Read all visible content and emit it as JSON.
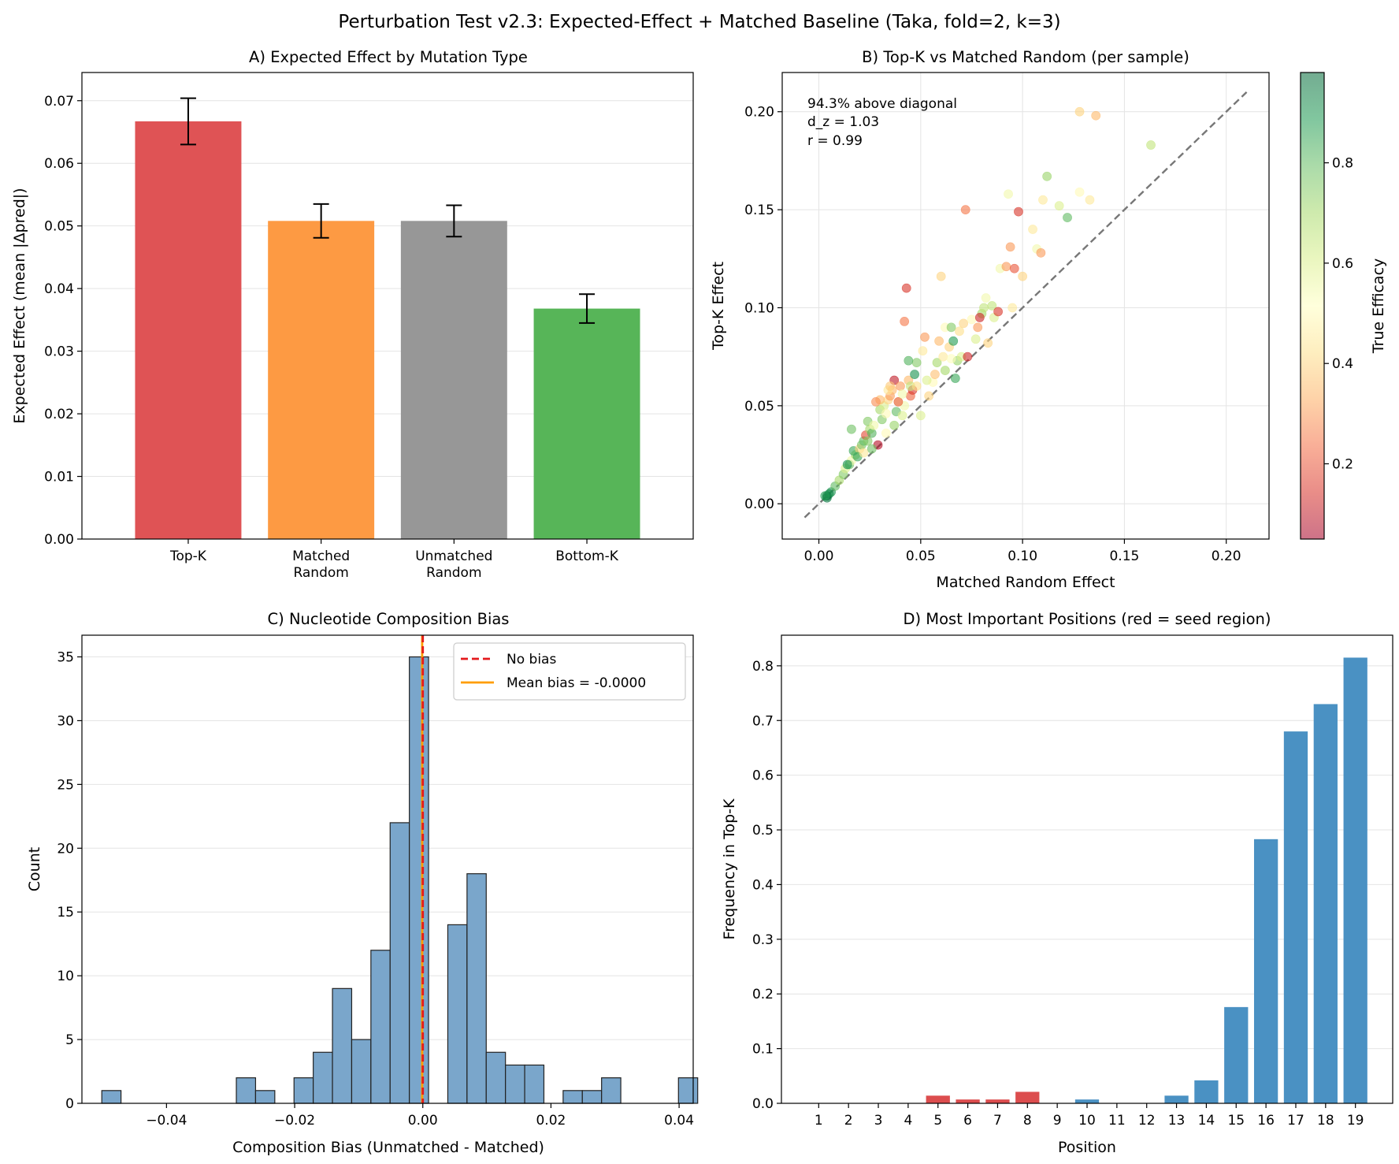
{
  "figure_title": "Perturbation Test v2.3: Expected-Effect + Matched Baseline (Taka, fold=2, k=3)",
  "colors": {
    "topk": "#df5355",
    "matched": "#fd9a43",
    "unmatched": "#979797",
    "bottomk": "#57b558",
    "hist": "#7aa6cb",
    "seed": "#dc4d4e",
    "position": "#4a91c3",
    "no_bias": "#e41a1c",
    "mean_bias": "#ff9d00",
    "diagonal": "#777777",
    "grid": "#e4e4e4"
  },
  "chart_data": [
    {
      "id": "A",
      "type": "bar",
      "title": "A) Expected Effect by Mutation Type",
      "xlabel": "",
      "ylabel": "Expected Effect (mean |Δpred|)",
      "categories": [
        "Top-K",
        "Matched\nRandom",
        "Unmatched\nRandom",
        "Bottom-K"
      ],
      "values": [
        0.0667,
        0.0508,
        0.0508,
        0.0368
      ],
      "errors": [
        0.0037,
        0.0027,
        0.0025,
        0.0023
      ],
      "bar_colors": [
        "#df5355",
        "#fd9a43",
        "#979797",
        "#57b558"
      ],
      "ylim": [
        0,
        0.0745
      ],
      "yticks": [
        0,
        0.01,
        0.02,
        0.03,
        0.04,
        0.05,
        0.06,
        0.07
      ],
      "ytick_labels": [
        "0.00",
        "0.01",
        "0.02",
        "0.03",
        "0.04",
        "0.05",
        "0.06",
        "0.07"
      ],
      "grid": "y"
    },
    {
      "id": "B",
      "type": "scatter",
      "title": "B) Top-K vs Matched Random (per sample)",
      "xlabel": "Matched Random Effect",
      "ylabel": "Top-K Effect",
      "xlim": [
        -0.018,
        0.221
      ],
      "ylim": [
        -0.018,
        0.22
      ],
      "xticks": [
        0,
        0.05,
        0.1,
        0.15,
        0.2
      ],
      "xtick_labels": [
        "0.00",
        "0.05",
        "0.10",
        "0.15",
        "0.20"
      ],
      "yticks": [
        0,
        0.05,
        0.1,
        0.15,
        0.2
      ],
      "ytick_labels": [
        "0.00",
        "0.05",
        "0.10",
        "0.15",
        "0.20"
      ],
      "annotations": [
        "94.3% above diagonal",
        "d_z = 1.03",
        "r = 0.99"
      ],
      "diagonal": [
        -0.007,
        0.21
      ],
      "colorbar": {
        "label": "True Efficacy",
        "range": [
          0.05,
          0.98
        ],
        "ticks": [
          0.2,
          0.4,
          0.6,
          0.8
        ],
        "tick_labels": [
          "0.2",
          "0.4",
          "0.6",
          "0.8"
        ],
        "colormap": "RdYlGn"
      },
      "grid": "both",
      "points": [
        [
          0.004,
          0.003,
          0.95
        ],
        [
          0.005,
          0.005,
          0.92
        ],
        [
          0.004,
          0.004,
          0.97
        ],
        [
          0.006,
          0.006,
          0.9
        ],
        [
          0.003,
          0.004,
          0.88
        ],
        [
          0.008,
          0.009,
          0.8
        ],
        [
          0.01,
          0.012,
          0.7
        ],
        [
          0.012,
          0.015,
          0.75
        ],
        [
          0.013,
          0.018,
          0.6
        ],
        [
          0.015,
          0.02,
          0.78
        ],
        [
          0.016,
          0.022,
          0.55
        ],
        [
          0.018,
          0.025,
          0.72
        ],
        [
          0.017,
          0.027,
          0.85
        ],
        [
          0.02,
          0.028,
          0.4
        ],
        [
          0.021,
          0.03,
          0.77
        ],
        [
          0.022,
          0.032,
          0.8
        ],
        [
          0.023,
          0.035,
          0.18
        ],
        [
          0.024,
          0.042,
          0.75
        ],
        [
          0.025,
          0.038,
          0.7
        ],
        [
          0.026,
          0.036,
          0.82
        ],
        [
          0.027,
          0.04,
          0.55
        ],
        [
          0.016,
          0.038,
          0.78
        ],
        [
          0.029,
          0.03,
          0.08
        ],
        [
          0.03,
          0.048,
          0.7
        ],
        [
          0.031,
          0.043,
          0.75
        ],
        [
          0.032,
          0.05,
          0.6
        ],
        [
          0.033,
          0.036,
          0.5
        ],
        [
          0.034,
          0.053,
          0.4
        ],
        [
          0.035,
          0.055,
          0.3
        ],
        [
          0.036,
          0.058,
          0.35
        ],
        [
          0.037,
          0.063,
          0.1
        ],
        [
          0.037,
          0.04,
          0.72
        ],
        [
          0.038,
          0.047,
          0.8
        ],
        [
          0.039,
          0.052,
          0.55
        ],
        [
          0.04,
          0.06,
          0.3
        ],
        [
          0.041,
          0.045,
          0.6
        ],
        [
          0.042,
          0.05,
          0.55
        ],
        [
          0.043,
          0.11,
          0.15
        ],
        [
          0.042,
          0.093,
          0.25
        ],
        [
          0.044,
          0.063,
          0.35
        ],
        [
          0.045,
          0.055,
          0.22
        ],
        [
          0.046,
          0.058,
          0.15
        ],
        [
          0.047,
          0.066,
          0.9
        ],
        [
          0.048,
          0.072,
          0.75
        ],
        [
          0.05,
          0.045,
          0.6
        ],
        [
          0.051,
          0.078,
          0.45
        ],
        [
          0.052,
          0.085,
          0.3
        ],
        [
          0.054,
          0.055,
          0.4
        ],
        [
          0.056,
          0.062,
          0.5
        ],
        [
          0.058,
          0.072,
          0.7
        ],
        [
          0.059,
          0.083,
          0.35
        ],
        [
          0.06,
          0.116,
          0.4
        ],
        [
          0.061,
          0.075,
          0.45
        ],
        [
          0.062,
          0.09,
          0.5
        ],
        [
          0.064,
          0.08,
          0.4
        ],
        [
          0.065,
          0.09,
          0.75
        ],
        [
          0.066,
          0.083,
          0.88
        ],
        [
          0.067,
          0.064,
          0.85
        ],
        [
          0.068,
          0.073,
          0.72
        ],
        [
          0.07,
          0.075,
          0.6
        ],
        [
          0.071,
          0.092,
          0.4
        ],
        [
          0.072,
          0.15,
          0.25
        ],
        [
          0.073,
          0.075,
          0.12
        ],
        [
          0.075,
          0.094,
          0.5
        ],
        [
          0.077,
          0.084,
          0.6
        ],
        [
          0.078,
          0.09,
          0.3
        ],
        [
          0.08,
          0.097,
          0.7
        ],
        [
          0.081,
          0.1,
          0.65
        ],
        [
          0.082,
          0.105,
          0.55
        ],
        [
          0.083,
          0.082,
          0.4
        ],
        [
          0.085,
          0.101,
          0.65
        ],
        [
          0.086,
          0.095,
          0.6
        ],
        [
          0.088,
          0.098,
          0.15
        ],
        [
          0.089,
          0.12,
          0.55
        ],
        [
          0.092,
          0.121,
          0.3
        ],
        [
          0.093,
          0.158,
          0.55
        ],
        [
          0.094,
          0.131,
          0.3
        ],
        [
          0.095,
          0.1,
          0.45
        ],
        [
          0.096,
          0.12,
          0.2
        ],
        [
          0.098,
          0.149,
          0.15
        ],
        [
          0.1,
          0.116,
          0.4
        ],
        [
          0.105,
          0.14,
          0.45
        ],
        [
          0.107,
          0.13,
          0.55
        ],
        [
          0.109,
          0.128,
          0.3
        ],
        [
          0.11,
          0.155,
          0.45
        ],
        [
          0.112,
          0.167,
          0.72
        ],
        [
          0.118,
          0.152,
          0.6
        ],
        [
          0.122,
          0.146,
          0.8
        ],
        [
          0.128,
          0.2,
          0.4
        ],
        [
          0.128,
          0.159,
          0.5
        ],
        [
          0.133,
          0.155,
          0.45
        ],
        [
          0.136,
          0.198,
          0.35
        ],
        [
          0.163,
          0.183,
          0.65
        ],
        [
          0.026,
          0.028,
          0.78
        ],
        [
          0.03,
          0.053,
          0.35
        ],
        [
          0.034,
          0.058,
          0.45
        ],
        [
          0.039,
          0.052,
          0.2
        ],
        [
          0.045,
          0.06,
          0.65
        ],
        [
          0.053,
          0.063,
          0.6
        ],
        [
          0.062,
          0.068,
          0.7
        ],
        [
          0.069,
          0.088,
          0.42
        ],
        [
          0.079,
          0.095,
          0.12
        ],
        [
          0.019,
          0.024,
          0.85
        ],
        [
          0.014,
          0.02,
          0.9
        ],
        [
          0.022,
          0.026,
          0.45
        ],
        [
          0.033,
          0.046,
          0.5
        ],
        [
          0.035,
          0.06,
          0.38
        ],
        [
          0.041,
          0.056,
          0.55
        ],
        [
          0.048,
          0.06,
          0.42
        ],
        [
          0.057,
          0.066,
          0.36
        ],
        [
          0.065,
          0.074,
          0.52
        ],
        [
          0.044,
          0.073,
          0.82
        ],
        [
          0.028,
          0.052,
          0.28
        ],
        [
          0.024,
          0.032,
          0.75
        ]
      ]
    },
    {
      "id": "C",
      "type": "bar",
      "subtype": "histogram",
      "title": "C) Nucleotide Composition Bias",
      "xlabel": "Composition Bias (Unmatched - Matched)",
      "ylabel": "Count",
      "bin_start": -0.0501,
      "bin_width": 0.003,
      "counts": [
        1,
        0,
        0,
        0,
        0,
        0,
        0,
        2,
        1,
        0,
        2,
        4,
        9,
        5,
        12,
        22,
        35,
        0,
        14,
        18,
        4,
        3,
        3,
        0,
        1,
        1,
        2,
        0,
        0,
        0,
        2
      ],
      "xlim": [
        -0.0532,
        0.0422
      ],
      "ylim": [
        0,
        36.7
      ],
      "xticks": [
        -0.04,
        -0.02,
        0,
        0.02,
        0.04
      ],
      "xtick_labels": [
        "−0.04",
        "−0.02",
        "0.00",
        "0.02",
        "0.04"
      ],
      "yticks": [
        0,
        5,
        10,
        15,
        20,
        25,
        30,
        35
      ],
      "ytick_labels": [
        "0",
        "5",
        "10",
        "15",
        "20",
        "25",
        "30",
        "35"
      ],
      "vlines": [
        {
          "label": "No bias",
          "x": 0,
          "style": "dashed"
        },
        {
          "label": "Mean bias = -0.0000",
          "x": -0.0001,
          "style": "solid"
        }
      ],
      "legend_position": "top-right",
      "grid": "y"
    },
    {
      "id": "D",
      "type": "bar",
      "title": "D) Most Important Positions (red = seed region)",
      "xlabel": "Position",
      "ylabel": "Frequency in Top-K",
      "categories": [
        "1",
        "2",
        "3",
        "4",
        "5",
        "6",
        "7",
        "8",
        "9",
        "10",
        "11",
        "12",
        "13",
        "14",
        "15",
        "16",
        "17",
        "18",
        "19"
      ],
      "values": [
        0,
        0,
        0,
        0,
        0.014,
        0.007,
        0.007,
        0.021,
        0,
        0.007,
        0,
        0,
        0.014,
        0.042,
        0.176,
        0.483,
        0.68,
        0.73,
        0.815
      ],
      "seed_region": [
        "5",
        "6",
        "7",
        "8"
      ],
      "ylim": [
        0,
        0.856
      ],
      "yticks": [
        0,
        0.1,
        0.2,
        0.3,
        0.4,
        0.5,
        0.6,
        0.7,
        0.8
      ],
      "ytick_labels": [
        "0.0",
        "0.1",
        "0.2",
        "0.3",
        "0.4",
        "0.5",
        "0.6",
        "0.7",
        "0.8"
      ],
      "grid": "y"
    }
  ]
}
